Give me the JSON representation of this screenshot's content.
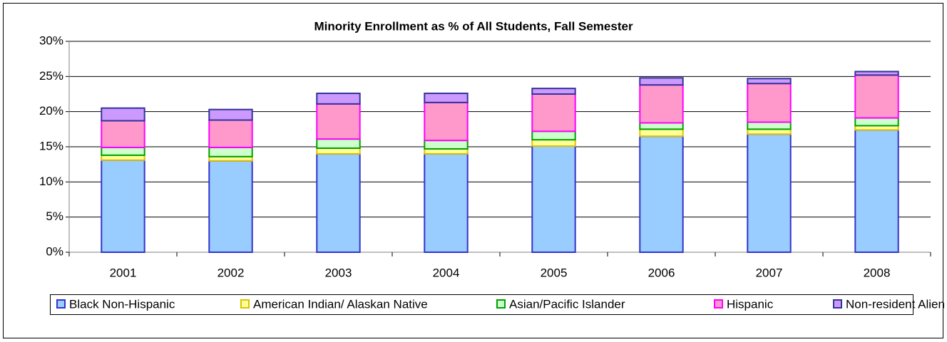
{
  "chart_data": {
    "type": "stacked_bar",
    "title": "Minority Enrollment as % of All Students, Fall Semester",
    "categories": [
      "2001",
      "2002",
      "2003",
      "2004",
      "2005",
      "2006",
      "2007",
      "2008"
    ],
    "series": [
      {
        "name": "Black Non-Hispanic",
        "color": "#99ccff",
        "edge": "#3333cc",
        "values": [
          13.1,
          13.0,
          14.0,
          14.0,
          15.1,
          16.5,
          16.8,
          17.4
        ]
      },
      {
        "name": "American Indian/ Alaskan Native",
        "color": "#ffff99",
        "edge": "#e0c000",
        "values": [
          0.7,
          0.6,
          0.8,
          0.7,
          0.9,
          1.0,
          0.7,
          0.6
        ]
      },
      {
        "name": "Asian/Pacific Islander",
        "color": "#ccffcc",
        "edge": "#00a000",
        "values": [
          1.1,
          1.3,
          1.3,
          1.2,
          1.2,
          0.9,
          1.0,
          1.1
        ]
      },
      {
        "name": "Hispanic",
        "color": "#ff99cc",
        "edge": "#ff00ff",
        "values": [
          3.8,
          3.9,
          5.0,
          5.4,
          5.3,
          5.4,
          5.5,
          6.1
        ]
      },
      {
        "name": "Non-resident Alien",
        "color": "#cc99ff",
        "edge": "#333399",
        "values": [
          1.8,
          1.5,
          1.5,
          1.3,
          0.8,
          1.0,
          0.7,
          0.5
        ]
      }
    ],
    "ylim": [
      0,
      30
    ],
    "yticks": [
      {
        "value": 0,
        "label": "0%"
      },
      {
        "value": 5,
        "label": "5%"
      },
      {
        "value": 10,
        "label": "10%"
      },
      {
        "value": 15,
        "label": "15%"
      },
      {
        "value": 20,
        "label": "20%"
      },
      {
        "value": 25,
        "label": "25%"
      },
      {
        "value": 30,
        "label": "30%"
      }
    ],
    "grid": true,
    "legend": "bottom"
  }
}
